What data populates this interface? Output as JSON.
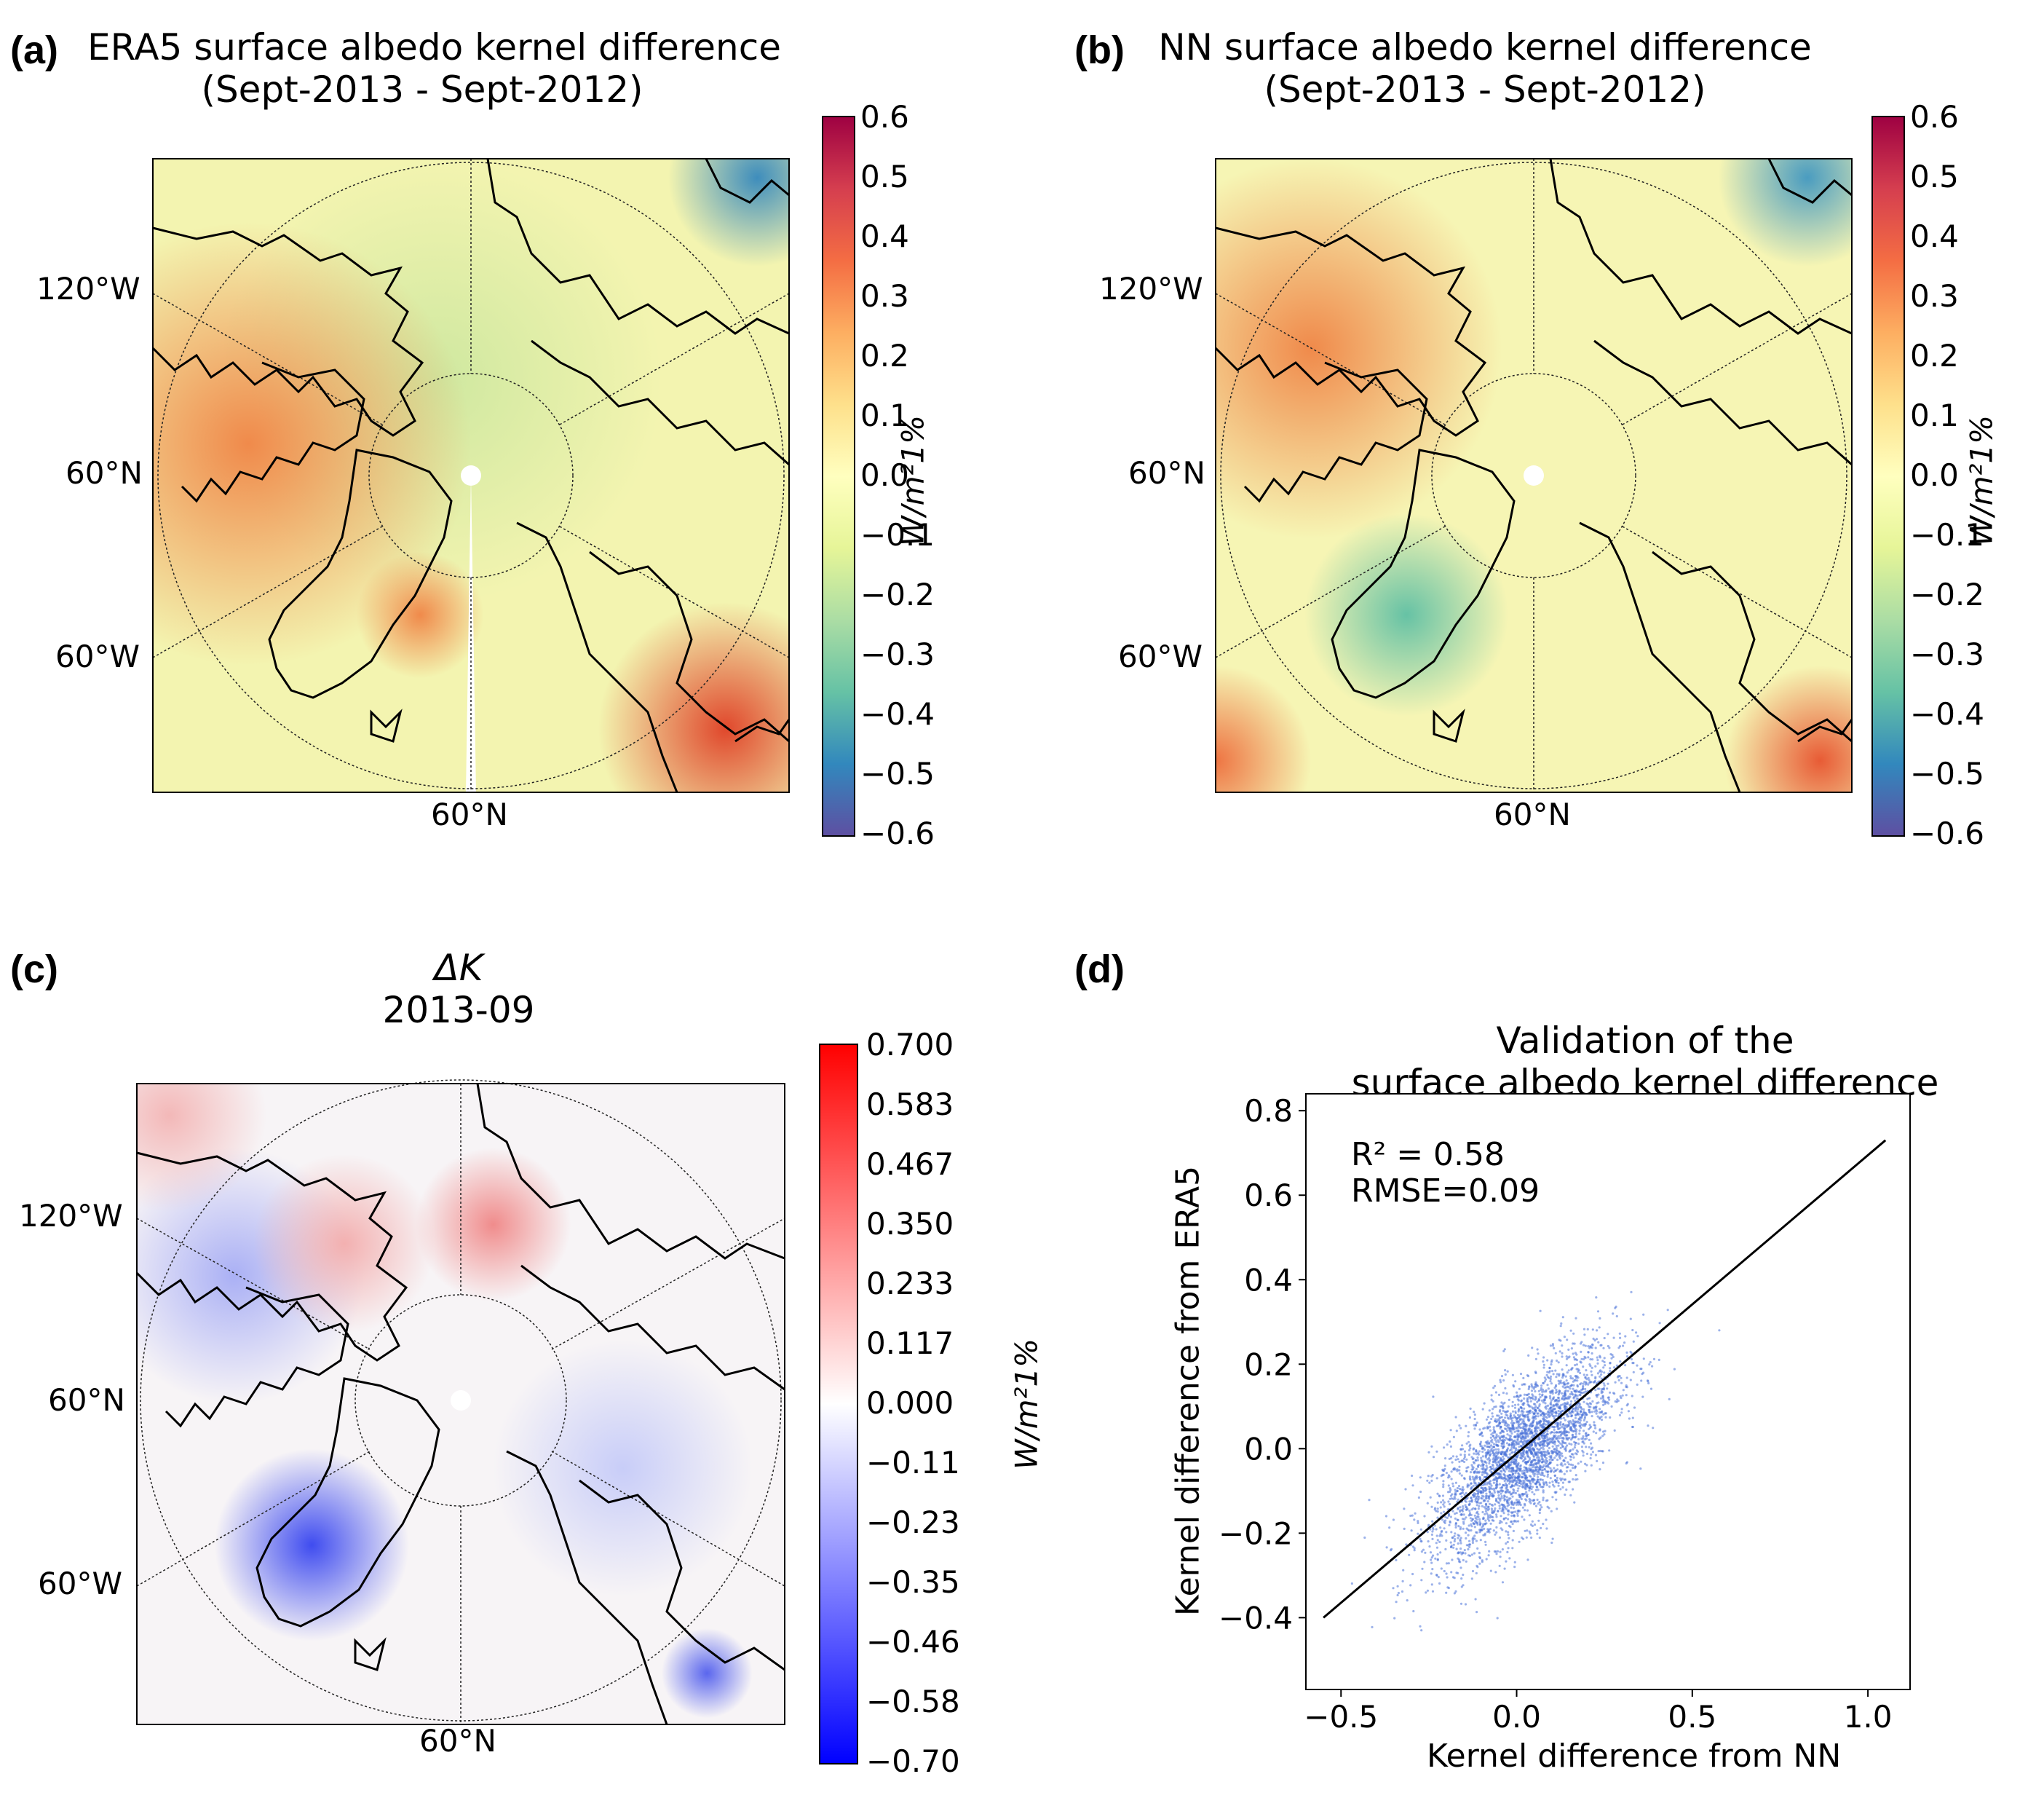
{
  "panels": {
    "a": {
      "label": "(a)",
      "title_line1": "ERA5 surface albedo kernel difference",
      "title_line2": "(Sept-2013 - Sept-2012)",
      "lat_labels": [
        "120°W",
        "60°N",
        "60°W"
      ],
      "bottom_label": "60°N",
      "colorbar_unit": "W/m²1%",
      "colorbar_ticks": [
        "0.6",
        "0.5",
        "0.4",
        "0.3",
        "0.2",
        "0.1",
        "0.0",
        "−0.1",
        "−0.2",
        "−0.3",
        "−0.4",
        "−0.5",
        "−0.6"
      ]
    },
    "b": {
      "label": "(b)",
      "title_line1": "NN surface albedo kernel difference",
      "title_line2": "(Sept-2013 - Sept-2012)",
      "lat_labels": [
        "120°W",
        "60°N",
        "60°W"
      ],
      "bottom_label": "60°N",
      "colorbar_unit": "W/m²1%",
      "colorbar_ticks": [
        "0.6",
        "0.5",
        "0.4",
        "0.3",
        "0.2",
        "0.1",
        "0.0",
        "−0.1",
        "−0.2",
        "−0.3",
        "−0.4",
        "−0.5",
        "−0.6"
      ]
    },
    "c": {
      "label": "(c)",
      "title_line1": "ΔK",
      "title_line2": "2013-09",
      "lat_labels": [
        "120°W",
        "60°N",
        "60°W"
      ],
      "bottom_label": "60°N",
      "colorbar_unit": "W/m²1%",
      "colorbar_ticks": [
        "0.700",
        "0.583",
        "0.467",
        "0.350",
        "0.233",
        "0.117",
        "0.000",
        "−0.11",
        "−0.23",
        "−0.35",
        "−0.46",
        "−0.58",
        "−0.70"
      ]
    },
    "d": {
      "label": "(d)",
      "title_line1": "Validation of the",
      "title_line2": "surface albedo kernel difference",
      "r2_text": "R² = 0.58",
      "rmse_text": "RMSE=0.09"
    }
  },
  "colors": {
    "scatter_point": "#4a72d8",
    "fit_line": "#000000"
  },
  "chart_data": [
    {
      "type": "heatmap",
      "title": "ERA5 surface albedo kernel difference (Sept-2013 - Sept-2012)",
      "projection": "north polar stereographic",
      "colorbar_label": "W/m²1%",
      "vmin": -0.6,
      "vmax": 0.6,
      "colormap": "Spectral_r"
    },
    {
      "type": "heatmap",
      "title": "NN surface albedo kernel difference (Sept-2013 - Sept-2012)",
      "projection": "north polar stereographic",
      "colorbar_label": "W/m²1%",
      "vmin": -0.6,
      "vmax": 0.6,
      "colormap": "Spectral_r"
    },
    {
      "type": "heatmap",
      "title": "ΔK 2013-09",
      "projection": "north polar stereographic",
      "colorbar_label": "W/m²1%",
      "vmin": -0.7,
      "vmax": 0.7,
      "colormap": "bwr"
    },
    {
      "type": "scatter",
      "title": "Validation of the surface albedo kernel difference",
      "xlabel": "Kernel difference from NN",
      "ylabel": "Kernel difference from ERA5",
      "xlim": [
        -0.6,
        1.12
      ],
      "ylim": [
        -0.57,
        0.84
      ],
      "xticks": [
        -0.5,
        0.0,
        0.5,
        1.0
      ],
      "xtick_labels": [
        "−0.5",
        "0.0",
        "0.5",
        "1.0"
      ],
      "yticks": [
        -0.4,
        -0.2,
        0.0,
        0.2,
        0.4,
        0.6,
        0.8
      ],
      "ytick_labels": [
        "−0.4",
        "−0.2",
        "0.0",
        "0.2",
        "0.4",
        "0.6",
        "0.8"
      ],
      "fit_line": {
        "x": [
          -0.55,
          1.05
        ],
        "y": [
          -0.4,
          0.73
        ]
      },
      "r2": 0.58,
      "rmse": 0.09,
      "cloud": {
        "center_x": 0.02,
        "center_y": -0.01,
        "n_points": 3500
      }
    }
  ]
}
